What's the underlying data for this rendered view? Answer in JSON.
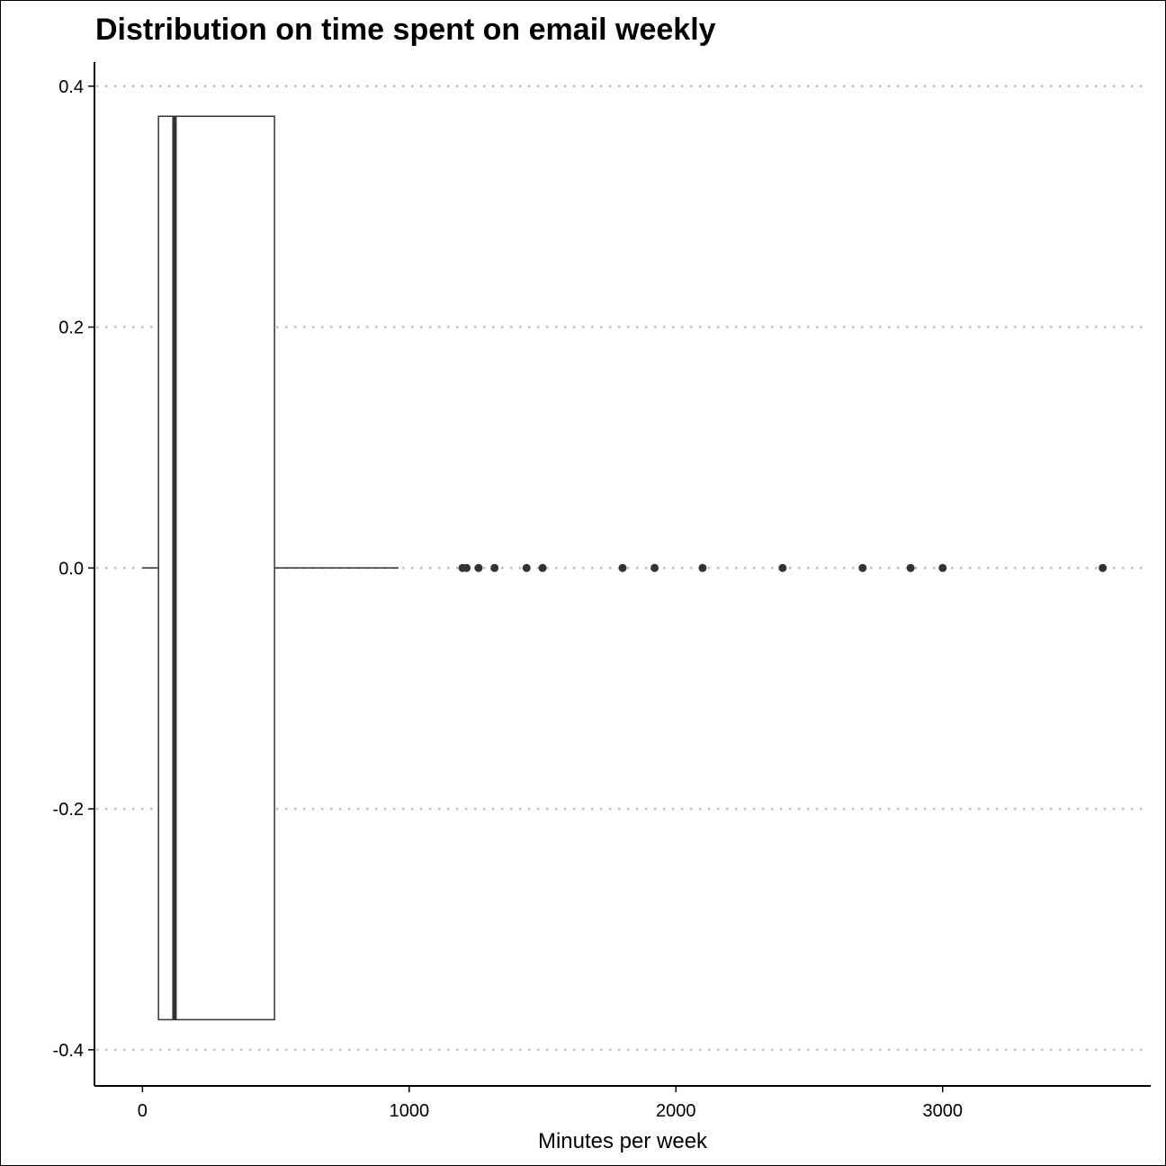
{
  "chart_data": {
    "type": "boxplot",
    "title": "Distribution on time spent on email weekly",
    "xlabel": "Minutes per week",
    "ylabel": "",
    "xlim": [
      -180,
      3780
    ],
    "ylim": [
      -0.43,
      0.42
    ],
    "x_ticks": [
      0,
      1000,
      2000,
      3000
    ],
    "x_tick_labels": [
      "0",
      "1000",
      "2000",
      "3000"
    ],
    "y_ticks": [
      0.4,
      0.2,
      0.0,
      -0.2,
      -0.4
    ],
    "y_tick_labels": [
      "0.4",
      "0.2",
      "0.0",
      "-0.2",
      "-0.4"
    ],
    "grid": "horizontal dotted major",
    "box": {
      "whisker_low": 0,
      "q1": 60,
      "median": 120,
      "q3": 495,
      "whisker_high": 960,
      "y_center": 0,
      "half_width": 0.375
    },
    "outliers": [
      1200,
      1215,
      1260,
      1320,
      1440,
      1500,
      1800,
      1920,
      2100,
      2400,
      2700,
      2880,
      3000,
      3600
    ],
    "colors": {
      "box_line": "#333333",
      "grid": "#bdbdbd",
      "axis": "#000000"
    }
  }
}
